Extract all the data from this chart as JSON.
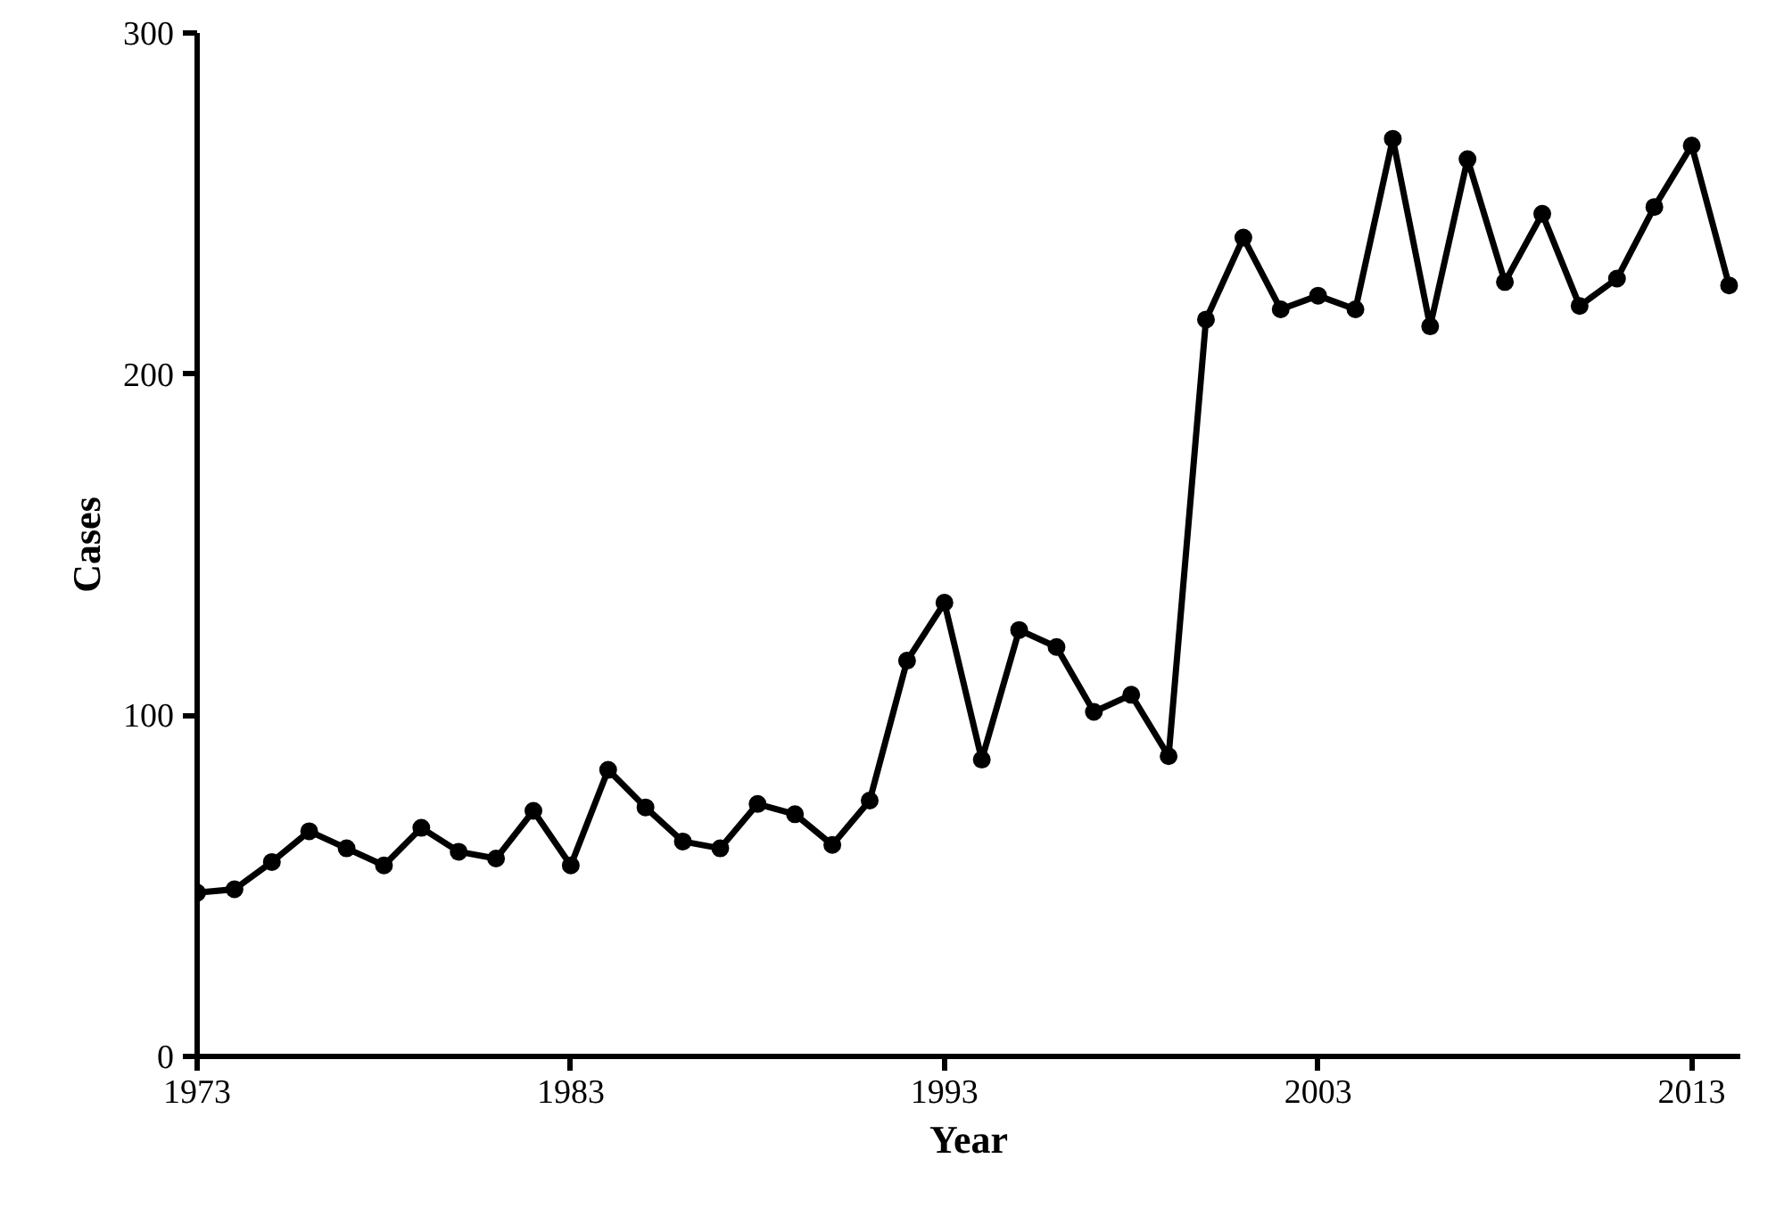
{
  "chart_data": {
    "type": "line",
    "xlabel": "Year",
    "ylabel": "Cases",
    "x": [
      1973,
      1974,
      1975,
      1976,
      1977,
      1978,
      1979,
      1980,
      1981,
      1982,
      1983,
      1984,
      1985,
      1986,
      1987,
      1988,
      1989,
      1990,
      1991,
      1992,
      1993,
      1994,
      1995,
      1996,
      1997,
      1998,
      1999,
      2000,
      2001,
      2002,
      2003,
      2004,
      2005,
      2006,
      2007,
      2008,
      2009,
      2010,
      2011,
      2012,
      2013,
      2014
    ],
    "series": [
      {
        "color": "#000000",
        "values": [
          48,
          49,
          57,
          66,
          61,
          56,
          67,
          60,
          58,
          72,
          56,
          84,
          73,
          63,
          61,
          74,
          71,
          62,
          75,
          116,
          133,
          87,
          125,
          120,
          101,
          106,
          88,
          216,
          240,
          219,
          223,
          219,
          269,
          214,
          263,
          227,
          247,
          220,
          228,
          249,
          267,
          226
        ]
      }
    ],
    "xlim": [
      1973,
      2014.3
    ],
    "ylim": [
      0,
      300
    ],
    "xticks": [
      1973,
      1983,
      1993,
      2003,
      2013
    ],
    "yticks": [
      0,
      100,
      200,
      300
    ],
    "grid": false,
    "marker": "circle",
    "line_style": "solid"
  }
}
